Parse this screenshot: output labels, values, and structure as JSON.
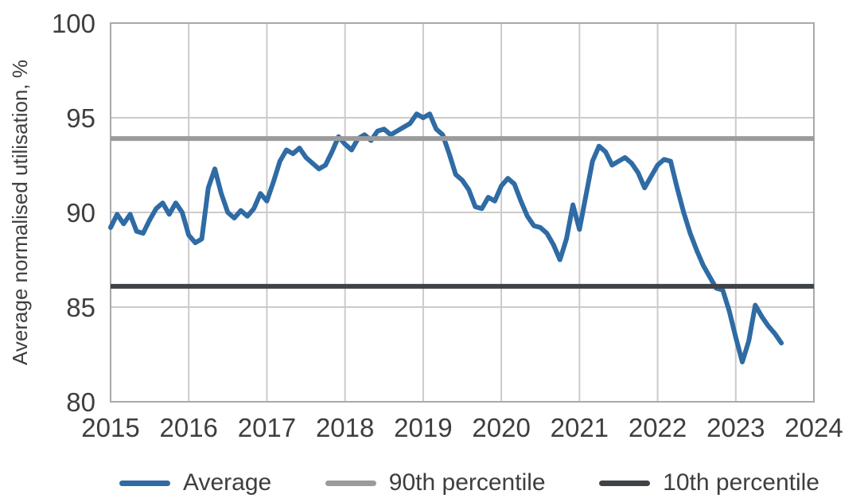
{
  "chart_data": {
    "type": "line",
    "title": "",
    "xlabel": "",
    "ylabel": "Average normalised utilisation, %",
    "xlim": [
      2015,
      2024
    ],
    "ylim": [
      80,
      100
    ],
    "x_ticks": [
      2015,
      2016,
      2017,
      2018,
      2019,
      2020,
      2021,
      2022,
      2023,
      2024
    ],
    "y_ticks": [
      80,
      85,
      90,
      95,
      100
    ],
    "grid": true,
    "legend_position": "bottom",
    "series": [
      {
        "name": "Average",
        "color": "#2f6ba4",
        "x_start": 2015.0,
        "points_per_year": 12,
        "values": [
          89.2,
          89.9,
          89.4,
          89.9,
          89.0,
          88.9,
          89.6,
          90.2,
          90.5,
          89.9,
          90.5,
          90.0,
          88.8,
          88.4,
          88.6,
          91.3,
          92.3,
          91.0,
          90.0,
          89.7,
          90.1,
          89.8,
          90.2,
          91.0,
          90.6,
          91.6,
          92.7,
          93.3,
          93.1,
          93.4,
          92.9,
          92.6,
          92.3,
          92.5,
          93.2,
          94.0,
          93.6,
          93.3,
          93.9,
          94.1,
          93.8,
          94.3,
          94.4,
          94.1,
          94.3,
          94.5,
          94.7,
          95.2,
          95.0,
          95.2,
          94.4,
          94.1,
          93.1,
          92.0,
          91.7,
          91.2,
          90.3,
          90.2,
          90.8,
          90.6,
          91.4,
          91.8,
          91.5,
          90.6,
          89.8,
          89.3,
          89.2,
          88.9,
          88.3,
          87.5,
          88.6,
          90.4,
          89.1,
          90.9,
          92.7,
          93.5,
          93.2,
          92.5,
          92.7,
          92.9,
          92.6,
          92.1,
          91.3,
          91.9,
          92.5,
          92.8,
          92.7,
          91.3,
          90.0,
          88.9,
          88.0,
          87.2,
          86.6,
          86.0,
          85.9,
          84.8,
          83.4,
          82.1,
          83.2,
          85.1,
          84.5,
          84.0,
          83.6,
          83.1
        ]
      },
      {
        "name": "90th percentile",
        "color": "#9b9b9b",
        "constant": 93.9
      },
      {
        "name": "10th percentile",
        "color": "#3f4246",
        "constant": 86.1
      }
    ]
  },
  "colors": {
    "background": "#ffffff",
    "gridline": "#cbcbcb",
    "frame": "#a7a9ab",
    "text": "#3e3e3e"
  }
}
